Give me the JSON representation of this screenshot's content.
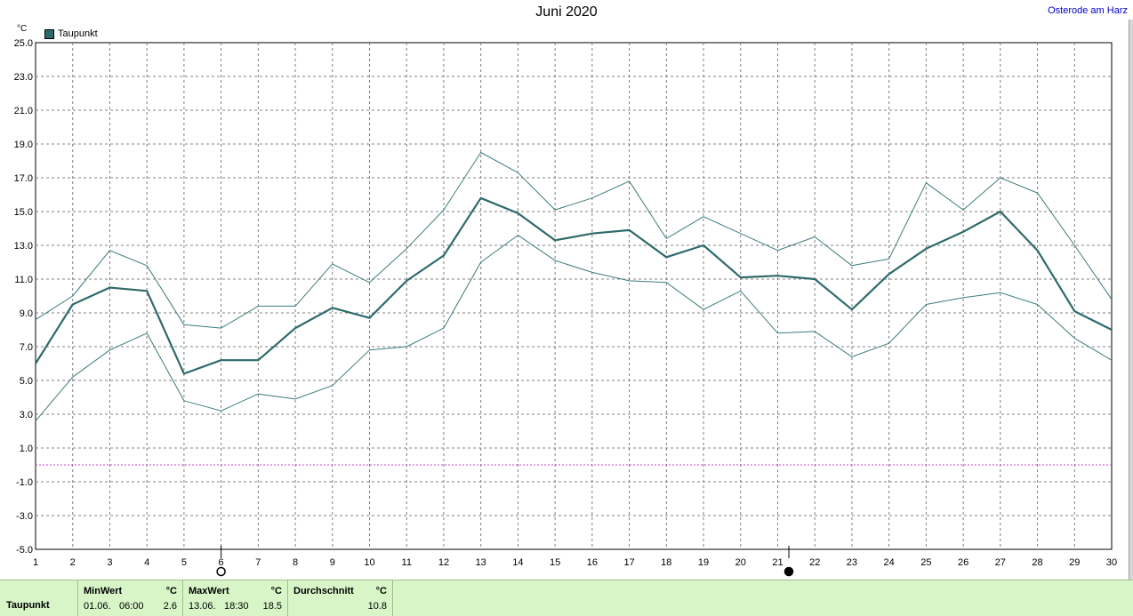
{
  "header": {
    "title": "Juni 2020",
    "location": "Osterode am Harz",
    "unit": "°C",
    "legend": "Taupunkt"
  },
  "chart_data": {
    "type": "line",
    "title": "Juni 2020",
    "ylabel": "°C",
    "xlim": [
      1,
      30
    ],
    "ylim": [
      -5,
      25
    ],
    "x": [
      1,
      2,
      3,
      4,
      5,
      6,
      7,
      8,
      9,
      10,
      11,
      12,
      13,
      14,
      15,
      16,
      17,
      18,
      19,
      20,
      21,
      22,
      23,
      24,
      25,
      26,
      27,
      28,
      29,
      30
    ],
    "yticks": [
      "25.0",
      "23.0",
      "21.0",
      "19.0",
      "17.0",
      "15.0",
      "13.0",
      "11.0",
      "9.0",
      "7.0",
      "5.0",
      "3.0",
      "1.0",
      "-1.0",
      "-3.0",
      "-5.0"
    ],
    "grid": true,
    "legend_position": "top-left",
    "series": [
      {
        "name": "Taupunkt",
        "color": "#2f6a6a",
        "values": [
          6.0,
          9.5,
          10.5,
          10.3,
          5.4,
          6.2,
          6.2,
          8.1,
          9.3,
          8.7,
          10.9,
          12.4,
          15.8,
          14.9,
          13.3,
          13.7,
          13.9,
          12.3,
          13.0,
          11.1,
          11.2,
          11.0,
          9.2,
          11.3,
          12.8,
          13.8,
          15.0,
          12.7,
          9.1,
          8.0
        ]
      },
      {
        "color": "#3d7c7c",
        "values": [
          8.6,
          10.0,
          12.7,
          11.8,
          8.3,
          8.1,
          9.4,
          9.4,
          11.9,
          10.8,
          12.8,
          15.1,
          18.5,
          17.3,
          15.1,
          15.8,
          16.8,
          13.4,
          14.7,
          13.7,
          12.7,
          13.5,
          11.8,
          12.2,
          16.7,
          15.1,
          17.0,
          16.1,
          13.0,
          9.8
        ]
      },
      {
        "color": "#3d7c7c",
        "values": [
          2.6,
          5.2,
          6.8,
          7.8,
          3.8,
          3.2,
          4.2,
          3.9,
          4.7,
          6.8,
          7.0,
          8.1,
          12.0,
          13.6,
          12.1,
          11.4,
          10.9,
          10.8,
          9.2,
          10.3,
          7.8,
          7.9,
          6.4,
          7.2,
          9.5,
          9.9,
          10.2,
          9.5,
          7.5,
          6.2
        ]
      }
    ],
    "reference_line": {
      "y": 0,
      "color": "#cc44cc"
    },
    "markers": [
      {
        "x": 6,
        "type": "full-moon"
      },
      {
        "x": 21.3,
        "type": "new-moon"
      }
    ]
  },
  "footer": {
    "row_label": "Taupunkt",
    "min": {
      "label": "MinWert",
      "unit": "°C",
      "date": "01.06.",
      "time": "06:00",
      "value": "2.6"
    },
    "max": {
      "label": "MaxWert",
      "unit": "°C",
      "date": "13.06.",
      "time": "18:30",
      "value": "18.5"
    },
    "avg": {
      "label": "Durchschnitt",
      "unit": "°C",
      "value": "10.8"
    }
  }
}
